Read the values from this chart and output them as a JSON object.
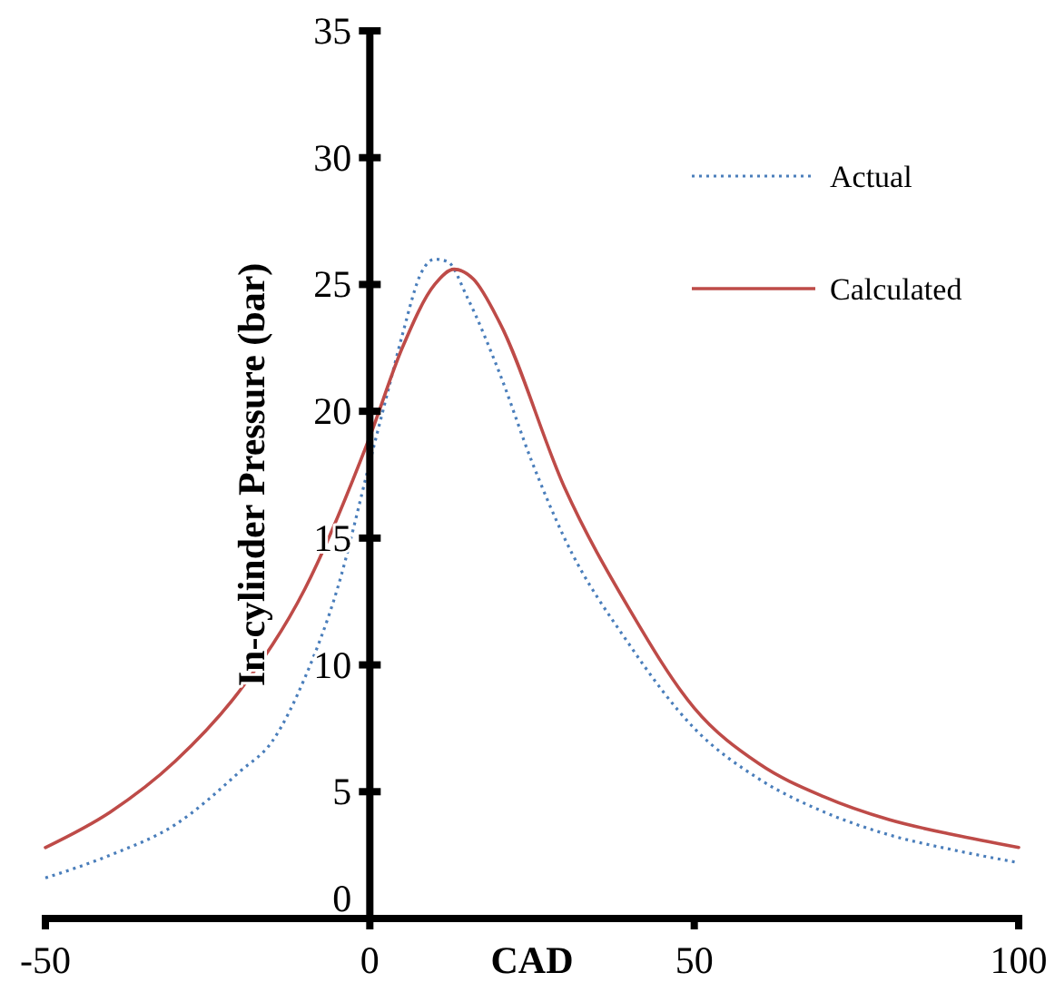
{
  "chart_data": {
    "type": "line",
    "xlabel": "CAD",
    "ylabel": "In-cylinder Pressure (bar)",
    "xlim": [
      -50,
      100
    ],
    "xticks": [
      -50,
      0,
      50,
      100
    ],
    "ylim": [
      0,
      35
    ],
    "yticks": [
      0,
      5,
      10,
      15,
      20,
      25,
      30,
      35
    ],
    "grid": false,
    "legend": "top right",
    "marker": "none",
    "series": [
      {
        "name": "Actual",
        "color": "#4a7ebb",
        "line_style": "dotted",
        "x": [
          -50,
          -40,
          -30,
          -20,
          -15,
          -10,
          -5,
          0,
          3,
          5,
          8,
          10,
          12,
          15,
          20,
          25,
          30,
          40,
          50,
          60,
          70,
          80,
          90,
          100
        ],
        "values": [
          1.6,
          2.5,
          3.7,
          5.8,
          7,
          9.5,
          13,
          18,
          21,
          23,
          25.5,
          26,
          25.9,
          24.5,
          21.5,
          18,
          15,
          10.8,
          7.5,
          5.5,
          4.2,
          3.3,
          2.7,
          2.2
        ]
      },
      {
        "name": "Calculated",
        "color": "#be4b48",
        "line_style": "solid",
        "x": [
          -50,
          -40,
          -30,
          -20,
          -10,
          0,
          5,
          10,
          13,
          16,
          20,
          30,
          40,
          50,
          60,
          70,
          80,
          90,
          100
        ],
        "values": [
          2.8,
          4.2,
          6.2,
          9,
          13,
          19,
          22.5,
          25,
          25.6,
          25.2,
          23.5,
          17,
          12.2,
          8.3,
          6.1,
          4.8,
          3.9,
          3.3,
          2.8
        ]
      }
    ]
  }
}
